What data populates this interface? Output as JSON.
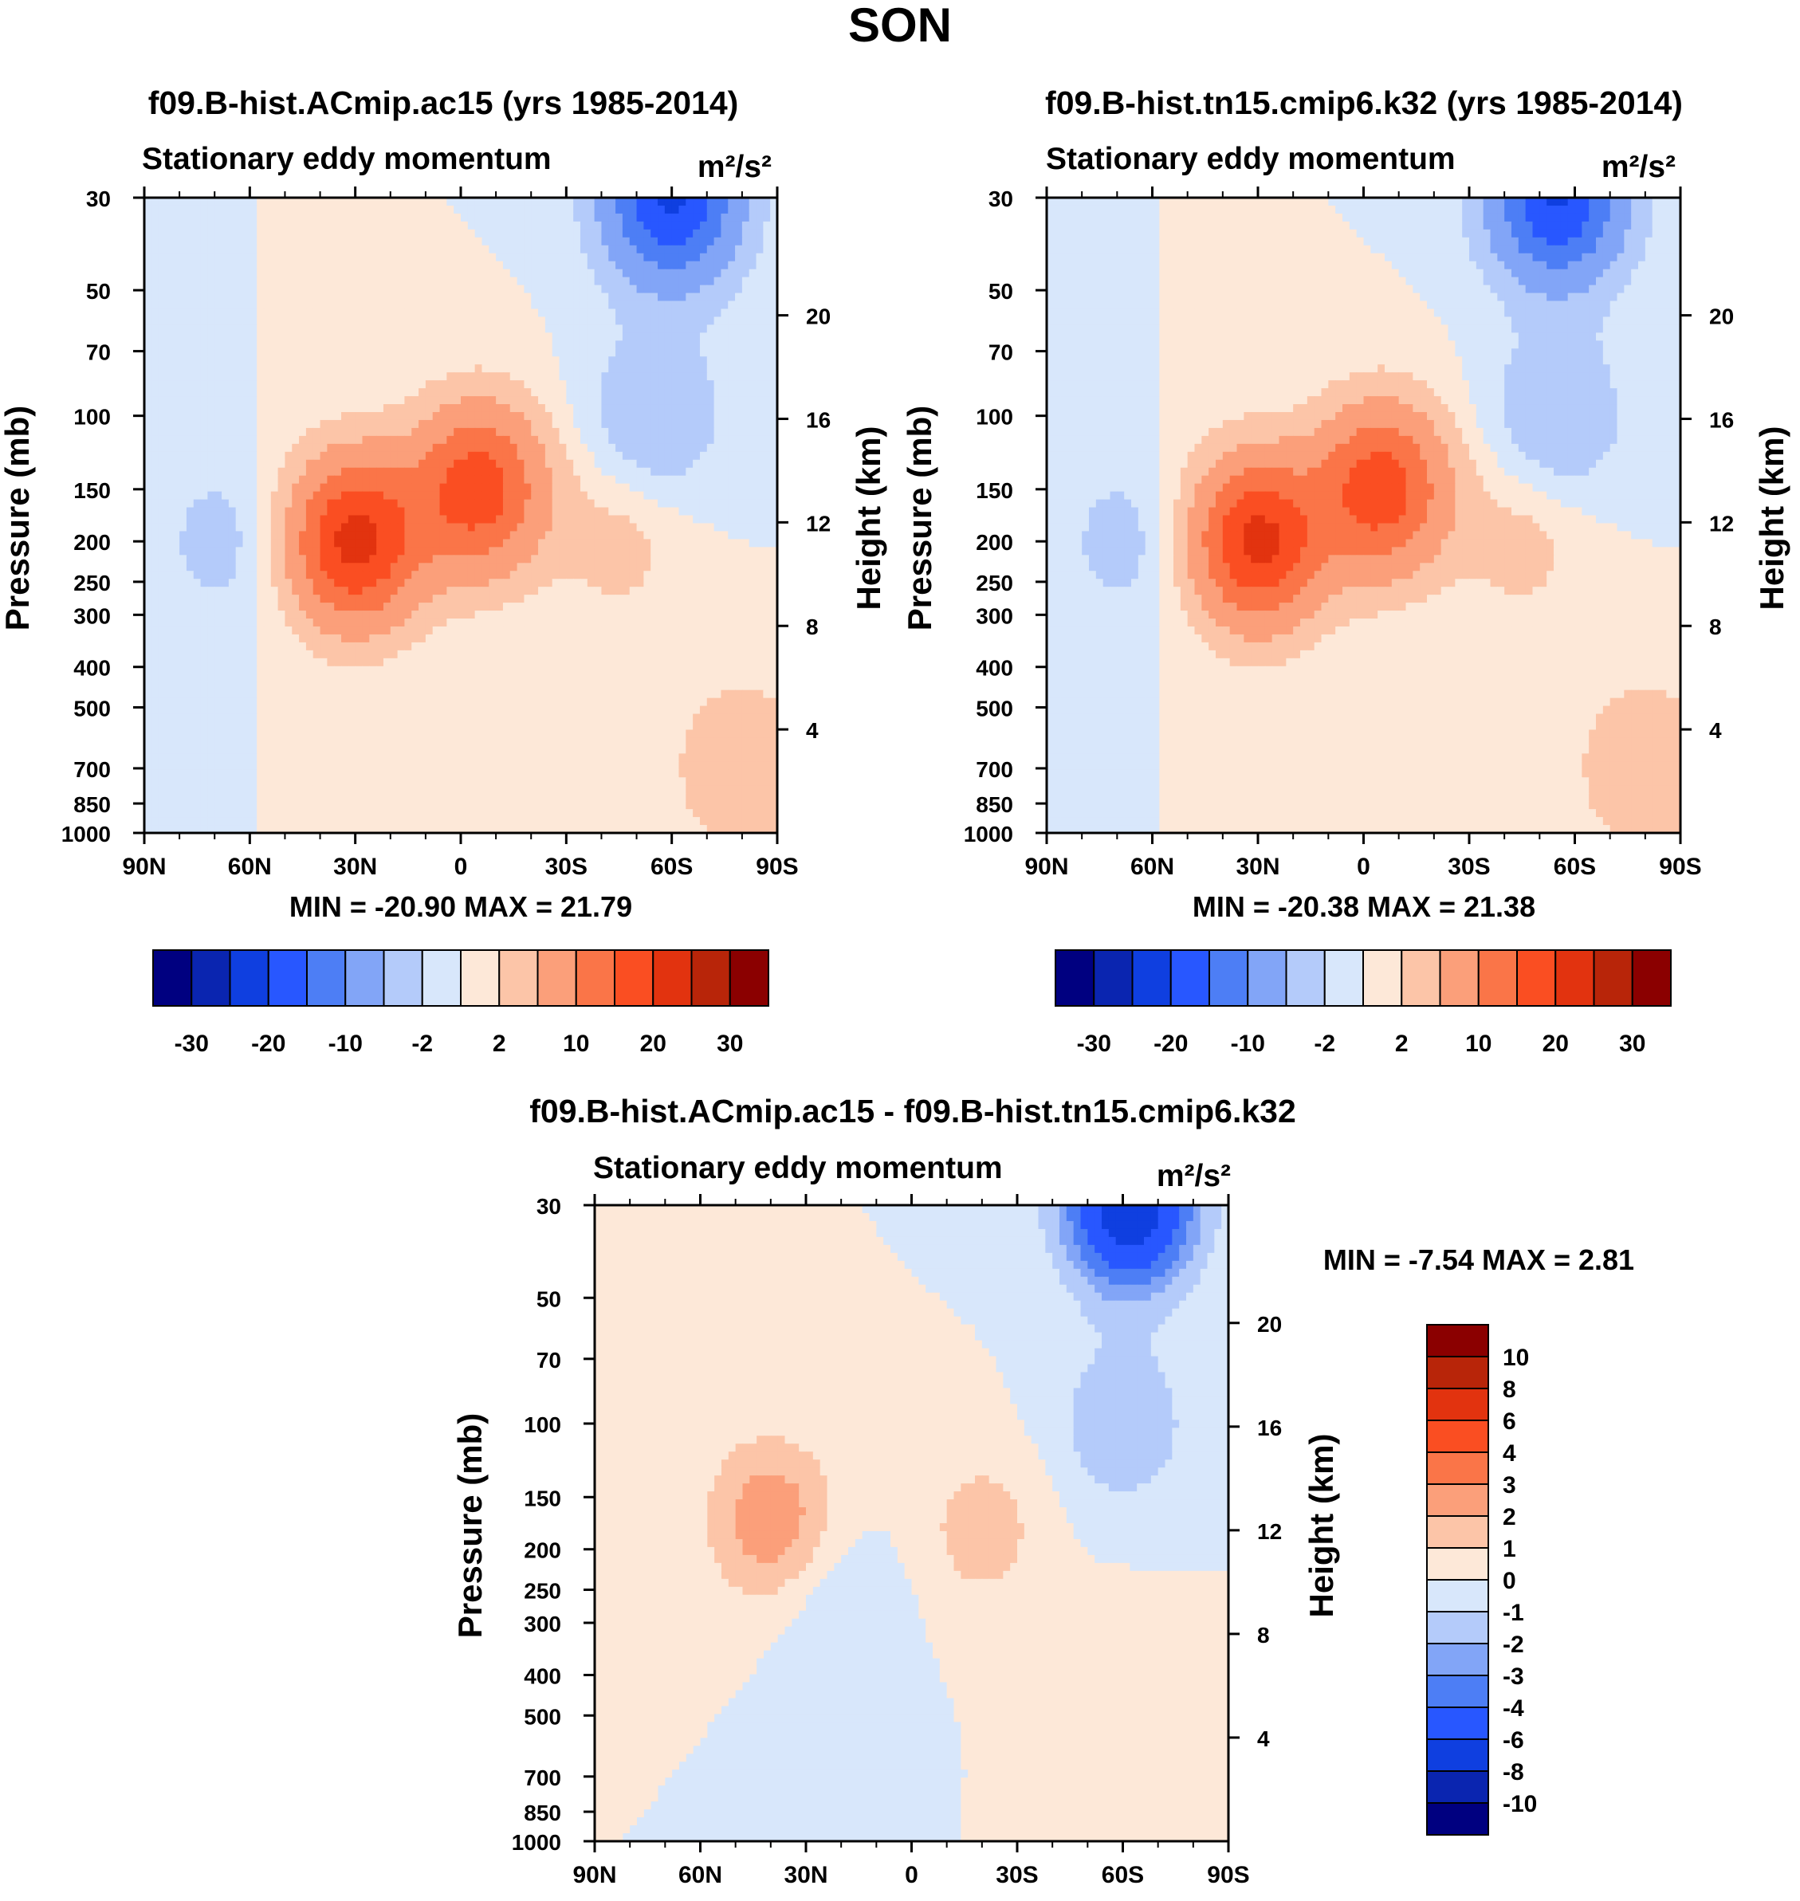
{
  "figure_title": "SON",
  "units_label": "m²/s²",
  "panels": [
    {
      "title": "f09.B-hist.ACmip.ac15 (yrs 1985-2014)",
      "subtitle": "Stationary eddy momentum",
      "units": "m²/s²",
      "ylabel": "Pressure (mb)",
      "y2label": "Height (km)",
      "min_max": "MIN = -20.90  MAX =  21.79",
      "min": -20.9,
      "max": 21.79
    },
    {
      "title": "f09.B-hist.tn15.cmip6.k32 (yrs 1985-2014)",
      "subtitle": "Stationary eddy momentum",
      "units": "m²/s²",
      "ylabel": "Pressure (mb)",
      "y2label": "Height (km)",
      "min_max": "MIN = -20.38  MAX =  21.38",
      "min": -20.38,
      "max": 21.38
    },
    {
      "title": "f09.B-hist.ACmip.ac15 - f09.B-hist.tn15.cmip6.k32",
      "subtitle": "Stationary eddy momentum",
      "units": "m²/s²",
      "ylabel": "Pressure (mb)",
      "y2label": "Height (km)",
      "min_max": "MIN =  -7.54  MAX =   2.81",
      "min": -7.54,
      "max": 2.81
    }
  ],
  "chart_data": [
    {
      "type": "heatmap",
      "title": "f09.B-hist.ACmip.ac15 (yrs 1985-2014)",
      "x_tick_labels": [
        "90N",
        "60N",
        "30N",
        "0",
        "30S",
        "60S",
        "90S"
      ],
      "x_values": [
        90,
        60,
        30,
        0,
        -30,
        -60,
        -90
      ],
      "pressure_ticks": [
        30,
        50,
        70,
        100,
        150,
        200,
        250,
        300,
        400,
        500,
        700,
        850,
        1000
      ],
      "height_ticks": [
        20,
        16,
        12,
        8,
        4
      ],
      "colorbar_labels": [
        "-30",
        "-20",
        "-10",
        "-2",
        "2",
        "10",
        "20",
        "30"
      ],
      "levels": [
        -35,
        -30,
        -25,
        -20,
        -15,
        -10,
        -5,
        -2,
        0,
        2,
        5,
        10,
        15,
        20,
        25,
        30,
        35
      ],
      "features": [
        {
          "lat": -60,
          "p": 30,
          "value": -20.9
        },
        {
          "lat": -55,
          "p": 100,
          "value": -5
        },
        {
          "lat": 30,
          "p": 200,
          "value": 21.79
        },
        {
          "lat": -5,
          "p": 150,
          "value": 18
        },
        {
          "lat": 68,
          "p": 200,
          "value": -3
        },
        {
          "lat": -45,
          "p": 200,
          "value": 3
        },
        {
          "lat": -80,
          "p": 700,
          "value": 5
        }
      ]
    },
    {
      "type": "heatmap",
      "title": "f09.B-hist.tn15.cmip6.k32 (yrs 1985-2014)",
      "x_tick_labels": [
        "90N",
        "60N",
        "30N",
        "0",
        "30S",
        "60S",
        "90S"
      ],
      "x_values": [
        90,
        60,
        30,
        0,
        -30,
        -60,
        -90
      ],
      "pressure_ticks": [
        30,
        50,
        70,
        100,
        150,
        200,
        250,
        300,
        400,
        500,
        700,
        850,
        1000
      ],
      "height_ticks": [
        20,
        16,
        12,
        8,
        4
      ],
      "colorbar_labels": [
        "-30",
        "-20",
        "-10",
        "-2",
        "2",
        "10",
        "20",
        "30"
      ],
      "levels": [
        -35,
        -30,
        -25,
        -20,
        -15,
        -10,
        -5,
        -2,
        0,
        2,
        5,
        10,
        15,
        20,
        25,
        30,
        35
      ],
      "features": [
        {
          "lat": -55,
          "p": 30,
          "value": -20.38
        },
        {
          "lat": -55,
          "p": 100,
          "value": -5
        },
        {
          "lat": 30,
          "p": 200,
          "value": 21.38
        },
        {
          "lat": -5,
          "p": 150,
          "value": 18
        },
        {
          "lat": 68,
          "p": 200,
          "value": -3
        },
        {
          "lat": -45,
          "p": 200,
          "value": 3
        },
        {
          "lat": -80,
          "p": 700,
          "value": 5
        }
      ]
    },
    {
      "type": "heatmap",
      "title": "f09.B-hist.ACmip.ac15 - f09.B-hist.tn15.cmip6.k32",
      "x_tick_labels": [
        "90N",
        "60N",
        "30N",
        "0",
        "30S",
        "60S",
        "90S"
      ],
      "x_values": [
        90,
        60,
        30,
        0,
        -30,
        -60,
        -90
      ],
      "pressure_ticks": [
        30,
        50,
        70,
        100,
        150,
        200,
        250,
        300,
        400,
        500,
        700,
        850,
        1000
      ],
      "height_ticks": [
        20,
        16,
        12,
        8,
        4
      ],
      "colorbar_labels": [
        "10",
        "8",
        "6",
        "4",
        "3",
        "2",
        "1",
        "0",
        "-1",
        "-2",
        "-3",
        "-4",
        "-6",
        "-8",
        "-10"
      ],
      "levels": [
        -12,
        -10,
        -8,
        -6,
        -4,
        -3,
        -2,
        -1,
        0,
        1,
        2,
        3,
        4,
        6,
        8,
        10,
        12
      ],
      "features": [
        {
          "lat": -62,
          "p": 30,
          "value": -7.54
        },
        {
          "lat": -60,
          "p": 100,
          "value": -2
        },
        {
          "lat": 40,
          "p": 170,
          "value": 2.81
        },
        {
          "lat": 20,
          "p": 280,
          "value": -1
        },
        {
          "lat": -20,
          "p": 180,
          "value": 1.5
        },
        {
          "lat": -60,
          "p": 400,
          "value": 0.5
        }
      ]
    }
  ],
  "colors": {
    "blue": [
      "#000080",
      "#0a25b0",
      "#0f3fe0",
      "#2857ff",
      "#4d7ef5",
      "#82a5f7",
      "#b4cbfa",
      "#d8e7fb"
    ],
    "red": [
      "#fde8d8",
      "#fcc5a8",
      "#fb9f7a",
      "#fa7548",
      "#fa4e22",
      "#e2330f",
      "#b82509",
      "#8b0000"
    ],
    "grey": "#c9c9c9"
  }
}
